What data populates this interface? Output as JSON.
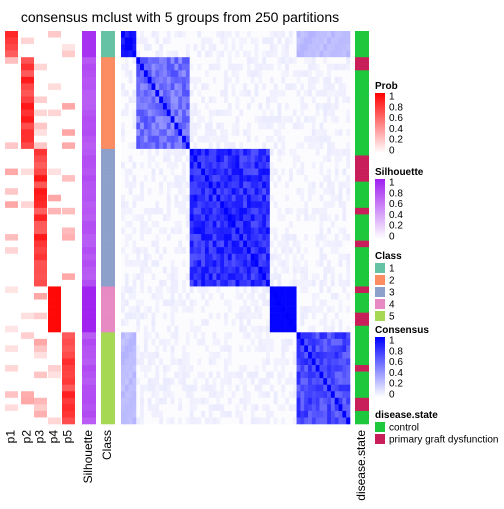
{
  "chart_data": {
    "type": "heatmap",
    "title": "consensus mclust with 5 groups from 250 partitions",
    "n_samples": 60,
    "columns": {
      "prob": [
        "p1",
        "p2",
        "p3",
        "p4",
        "p5"
      ],
      "silhouette": "Silhouette",
      "class": "Class",
      "disease_state": "disease.state"
    },
    "class_order": [
      1,
      1,
      1,
      1,
      2,
      2,
      2,
      2,
      2,
      2,
      2,
      2,
      2,
      2,
      2,
      2,
      2,
      2,
      3,
      3,
      3,
      3,
      3,
      3,
      3,
      3,
      3,
      3,
      3,
      3,
      3,
      3,
      3,
      3,
      3,
      3,
      3,
      3,
      3,
      4,
      4,
      4,
      4,
      4,
      4,
      4,
      5,
      5,
      5,
      5,
      5,
      5,
      5,
      5,
      5,
      5,
      5,
      5,
      5,
      5
    ],
    "disease_state": [
      "control",
      "control",
      "control",
      "control",
      "pgd",
      "pgd",
      "control",
      "control",
      "control",
      "control",
      "control",
      "control",
      "control",
      "control",
      "control",
      "control",
      "control",
      "control",
      "control",
      "pgd",
      "pgd",
      "pgd",
      "pgd",
      "control",
      "control",
      "control",
      "control",
      "pgd",
      "control",
      "control",
      "control",
      "control",
      "pgd",
      "control",
      "control",
      "control",
      "control",
      "control",
      "control",
      "pgd",
      "control",
      "control",
      "control",
      "pgd",
      "pgd",
      "control",
      "control",
      "control",
      "control",
      "control",
      "control",
      "pgd",
      "control",
      "control",
      "control",
      "control",
      "pgd",
      "pgd",
      "control",
      "control"
    ],
    "legends": {
      "prob": {
        "title": "Prob",
        "ticks": [
          "1",
          "0.8",
          "0.6",
          "0.4",
          "0.2",
          "0"
        ],
        "color_low": "#FFFFFF",
        "color_high": "#FF0000"
      },
      "silhouette": {
        "title": "Silhouette",
        "ticks": [
          "1",
          "0.8",
          "0.6",
          "0.4",
          "0.2",
          "0"
        ],
        "color_low": "#FFFFFF",
        "color_high": "#9F1FF0"
      },
      "class": {
        "title": "Class",
        "labels": [
          "1",
          "2",
          "3",
          "4",
          "5"
        ],
        "colors": [
          "#66C2A5",
          "#FC8D62",
          "#8DA0CB",
          "#E78AC3",
          "#A6D854"
        ]
      },
      "consensus": {
        "title": "Consensus",
        "ticks": [
          "1",
          "0.8",
          "0.6",
          "0.4",
          "0.2",
          "0"
        ],
        "color_low": "#FFFFFF",
        "color_high": "#0000FF"
      },
      "disease_state": {
        "title": "disease.state",
        "labels": [
          "control",
          "primary graft dysfunction"
        ],
        "colors": [
          "#1EC83C",
          "#C81E5A"
        ]
      }
    }
  }
}
